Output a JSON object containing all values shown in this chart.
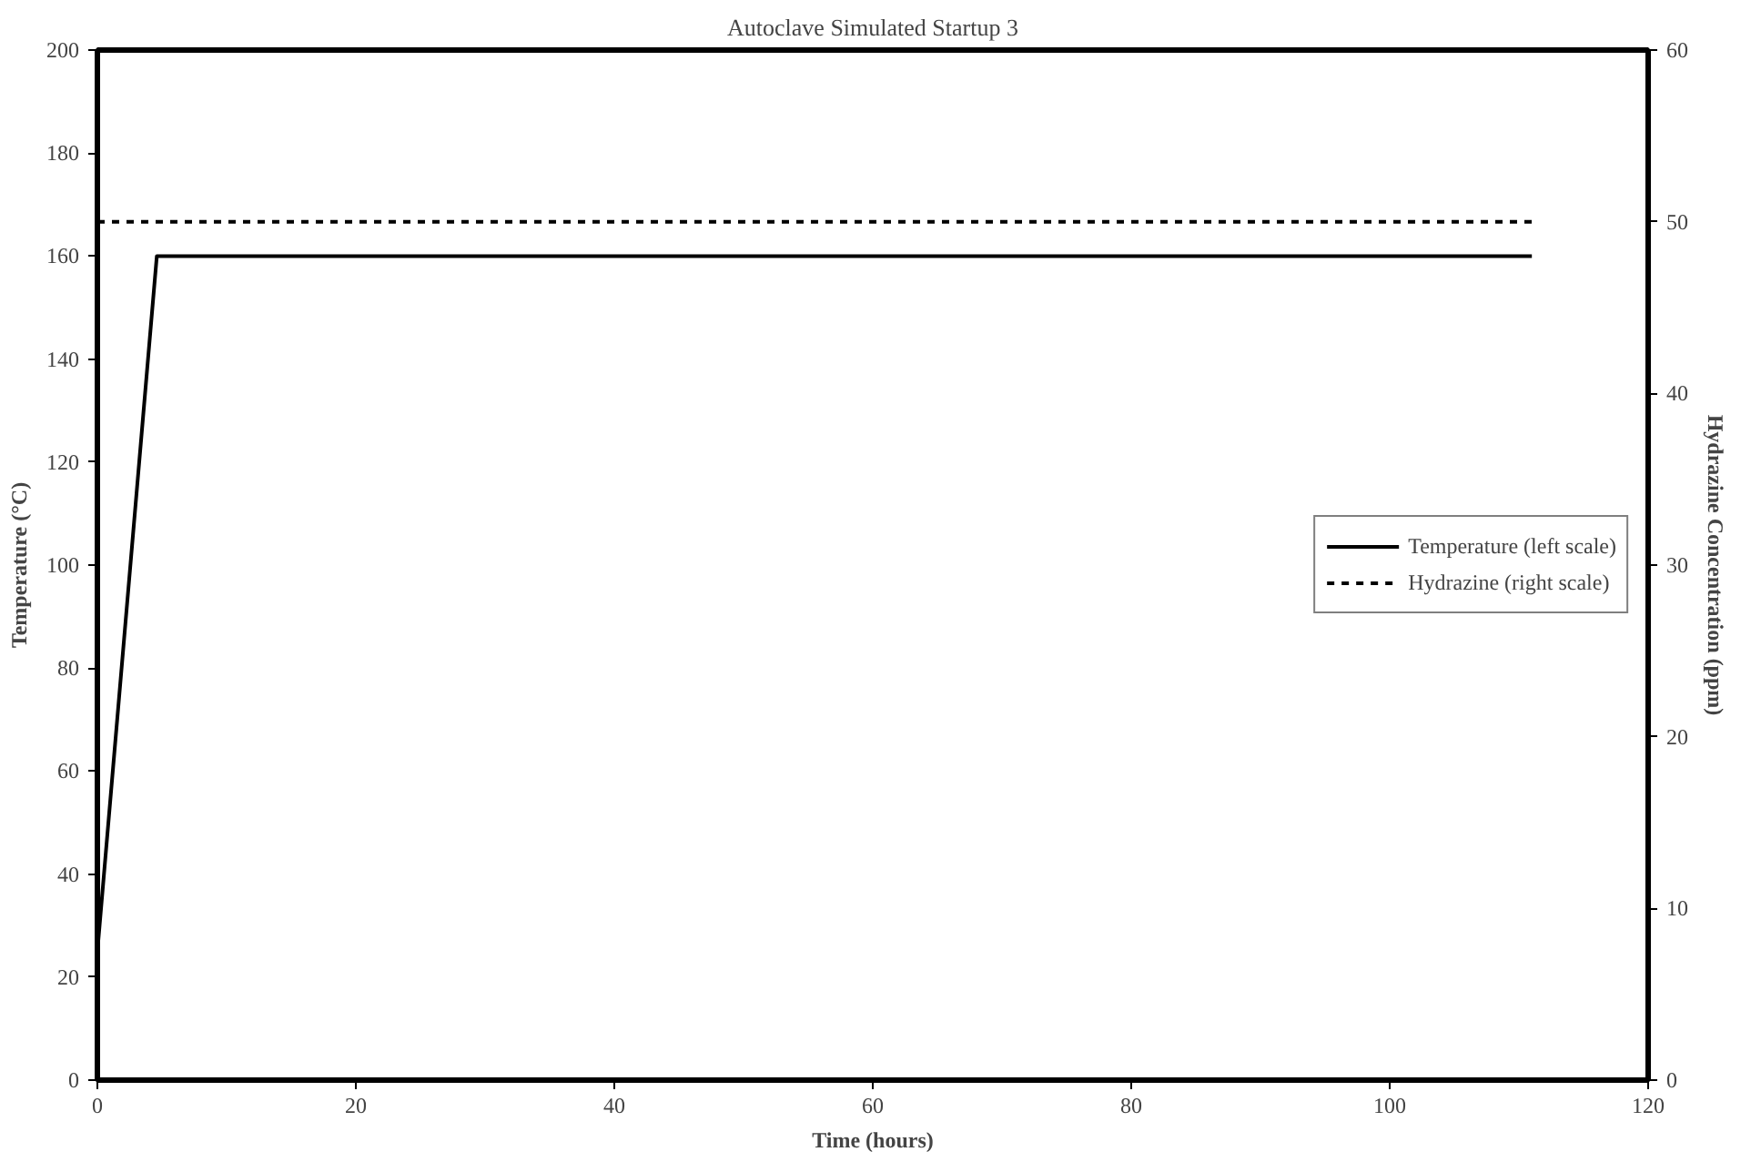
{
  "chart_data": {
    "type": "line",
    "title": "Autoclave Simulated Startup 3",
    "xlabel": "Time (hours)",
    "ylabel": "Temperature (°C)",
    "y2label": "Hydrazine Concentration (ppm)",
    "series": [
      {
        "name": "Temperature (left scale)",
        "color": "#000000",
        "x": [
          0,
          4.6,
          111
        ],
        "values": [
          25,
          160,
          160
        ],
        "line_style": "solid"
      },
      {
        "name": "Hydrazine (right scale)",
        "color": "#000000",
        "x": [
          0,
          111
        ],
        "values": [
          50,
          50
        ],
        "axis": "y2",
        "line_style": "dashed"
      }
    ],
    "xlim": [
      0,
      120
    ],
    "xticks": [
      0,
      20,
      40,
      60,
      80,
      100,
      120
    ],
    "ylim": [
      0,
      200
    ],
    "yticks": [
      0,
      20,
      40,
      60,
      80,
      100,
      120,
      140,
      160,
      180,
      200
    ],
    "y2lim": [
      0,
      60
    ],
    "y2ticks": [
      0,
      10,
      20,
      30,
      40,
      50,
      60
    ],
    "grid": false,
    "legend": "right"
  }
}
